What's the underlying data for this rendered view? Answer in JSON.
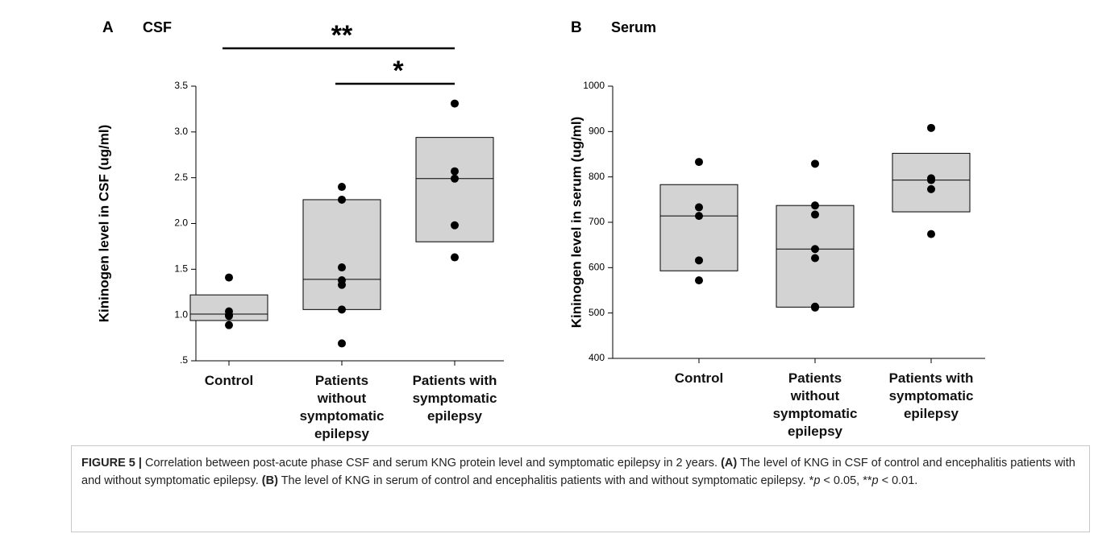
{
  "chart_data": [
    {
      "type": "box",
      "panel": "A",
      "title": "CSF",
      "ylabel": "Kininogen level in CSF (ug/ml)",
      "categories": [
        "Control",
        "Patients without symptomatic epilepsy",
        "Patients with symptomatic epilepsy"
      ],
      "boxes": [
        {
          "q1": 0.94,
          "median": 1.01,
          "q3": 1.22
        },
        {
          "q1": 1.06,
          "median": 1.39,
          "q3": 2.26
        },
        {
          "q1": 1.8,
          "median": 2.49,
          "q3": 2.94
        }
      ],
      "points": [
        [
          1.41,
          1.04,
          1.0,
          0.99,
          0.89
        ],
        [
          2.4,
          2.26,
          1.52,
          1.38,
          1.33,
          1.06,
          0.69
        ],
        [
          3.31,
          2.57,
          2.49,
          1.98,
          1.63
        ]
      ],
      "ylim": [
        0.5,
        3.5
      ],
      "yticks": [
        {
          "value": 0.5,
          "label": ".5"
        },
        {
          "value": 1.0,
          "label": "1.0"
        },
        1.5,
        {
          "value": 2.0,
          "label": "2.0"
        },
        2.5,
        {
          "value": 3.0,
          "label": "3.0"
        },
        3.5
      ],
      "box_color": "#d3d3d3",
      "point_color": "#000000",
      "brackets": [
        {
          "label": "**",
          "from": "Control",
          "to": "Patients with symptomatic epilepsy"
        },
        {
          "label": "*",
          "from": "Patients without symptomatic epilepsy",
          "to": "Patients with symptomatic epilepsy"
        }
      ]
    },
    {
      "type": "box",
      "panel": "B",
      "title": "Serum",
      "ylabel": "Kininogen level in serum (ug/ml)",
      "categories": [
        "Control",
        "Patients without symptomatic epilepsy",
        "Patients with symptomatic epilepsy"
      ],
      "boxes": [
        {
          "q1": 593,
          "median": 714,
          "q3": 783
        },
        {
          "q1": 513,
          "median": 641,
          "q3": 737
        },
        {
          "q1": 723,
          "median": 793,
          "q3": 852
        }
      ],
      "points": [
        [
          833,
          733,
          714,
          616,
          572
        ],
        [
          829,
          737,
          717,
          641,
          621,
          514,
          512
        ],
        [
          908,
          797,
          793,
          773,
          674
        ]
      ],
      "ylim": [
        400,
        1000
      ],
      "yticks": [
        400,
        500,
        600,
        700,
        800,
        900,
        1000
      ],
      "box_color": "#d3d3d3",
      "point_color": "#000000",
      "brackets": []
    }
  ],
  "caption": [
    "FIGURE 5 |",
    " Correlation between post-acute phase CSF and serum KNG protein level and symptomatic epilepsy in 2 years. ",
    "(A)",
    " The level of KNG in CSF of control and encephalitis patients with and without symptomatic epilepsy. ",
    "(B)",
    " The level of KNG in serum of control and encephalitis patients with and without symptomatic epilepsy. *",
    "p",
    " < 0.05, **",
    "p",
    " < 0.01."
  ]
}
